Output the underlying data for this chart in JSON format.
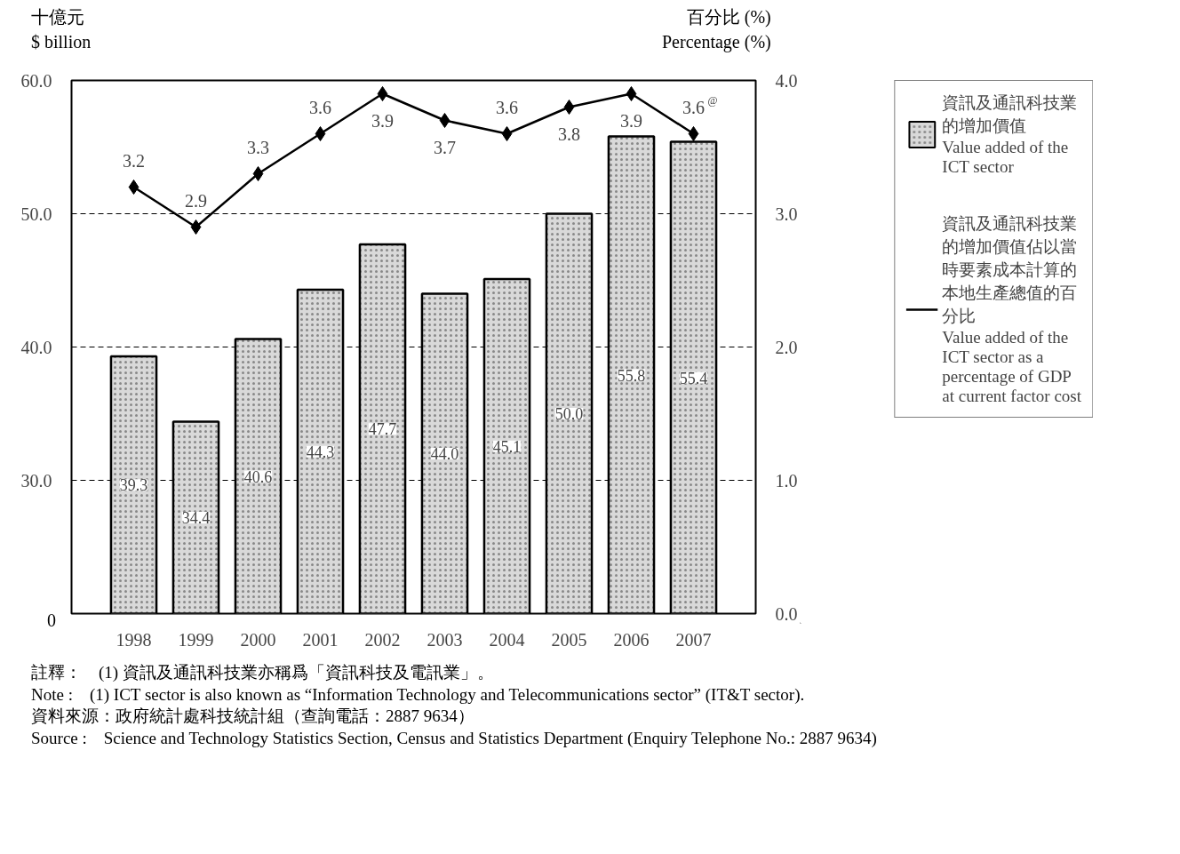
{
  "chart_data": {
    "type": "bar",
    "ylabel": "十億元\n$ billion",
    "y2label": "百分比 (%)\nPercentage (%)",
    "categories": [
      "1998",
      "1999",
      "2000",
      "2001",
      "2002",
      "2003",
      "2004",
      "2005",
      "2006",
      "2007"
    ],
    "series": [
      {
        "name": "資訊及通訊科技業的增加價值\nValue added of the\nICT sector",
        "color": "#d9d9d9",
        "values": [
          39.3,
          34.4,
          40.6,
          44.3,
          47.7,
          44.0,
          45.1,
          50.0,
          55.8,
          55.4
        ],
        "value_labels": [
          "39.3",
          "34.4",
          "40.6",
          "44.3",
          "47.7",
          "44.0",
          "45.1",
          "50.0",
          "55.8",
          "55.4"
        ]
      },
      {
        "name": "資訊及通訊科技業的增加價值佔以當時要素成本計算的本地生產總值的百分比\nValue added of the\nICT sector as a\npercentage of GDP\nat current factor cost",
        "type": "line",
        "axis": "y2",
        "color": "#000000",
        "marker": "diamond",
        "line_style": "solid",
        "values": [
          3.2,
          2.9,
          3.3,
          3.6,
          3.9,
          3.7,
          3.6,
          3.8,
          3.9,
          3.6
        ],
        "value_labels": [
          "3.2",
          "2.9",
          "3.3",
          "3.6",
          "3.9",
          "3.7",
          "3.6",
          "3.8",
          "3.9",
          "3.6$^{@}$"
        ]
      }
    ],
    "ylim": [
      20,
      60
    ],
    "yticks": [
      {
        "value": 30,
        "label": "30.0"
      },
      {
        "value": 40,
        "label": "40.0"
      },
      {
        "value": 50,
        "label": "50.0"
      },
      {
        "value": 60,
        "label": "60.0"
      }
    ],
    "y2lim": [
      0,
      4
    ],
    "y2ticks": [
      {
        "value": 0,
        "label": "0.0"
      },
      {
        "value": 1,
        "label": "1.0"
      },
      {
        "value": 2,
        "label": "2.0"
      },
      {
        "value": 3,
        "label": "3.0"
      },
      {
        "value": 4,
        "label": "4.0"
      }
    ],
    "grid": "y",
    "legend": "right",
    "annotations": [
      "0",
      "註釋：　(1) 資訊及通訊科技業亦稱爲「資訊科技及電訊業」。",
      "Note :　(1) ICT sector is also known as “Information Technology and Telecommunications sector” (IT&T sector).",
      "資料來源：政府統計處科技統計組（查詢電話：2887 9634）",
      "Source :　Science and Technology Statistics Section, Census and Statistics Department (Enquiry Telephone No.: 2887 9634)"
    ]
  }
}
